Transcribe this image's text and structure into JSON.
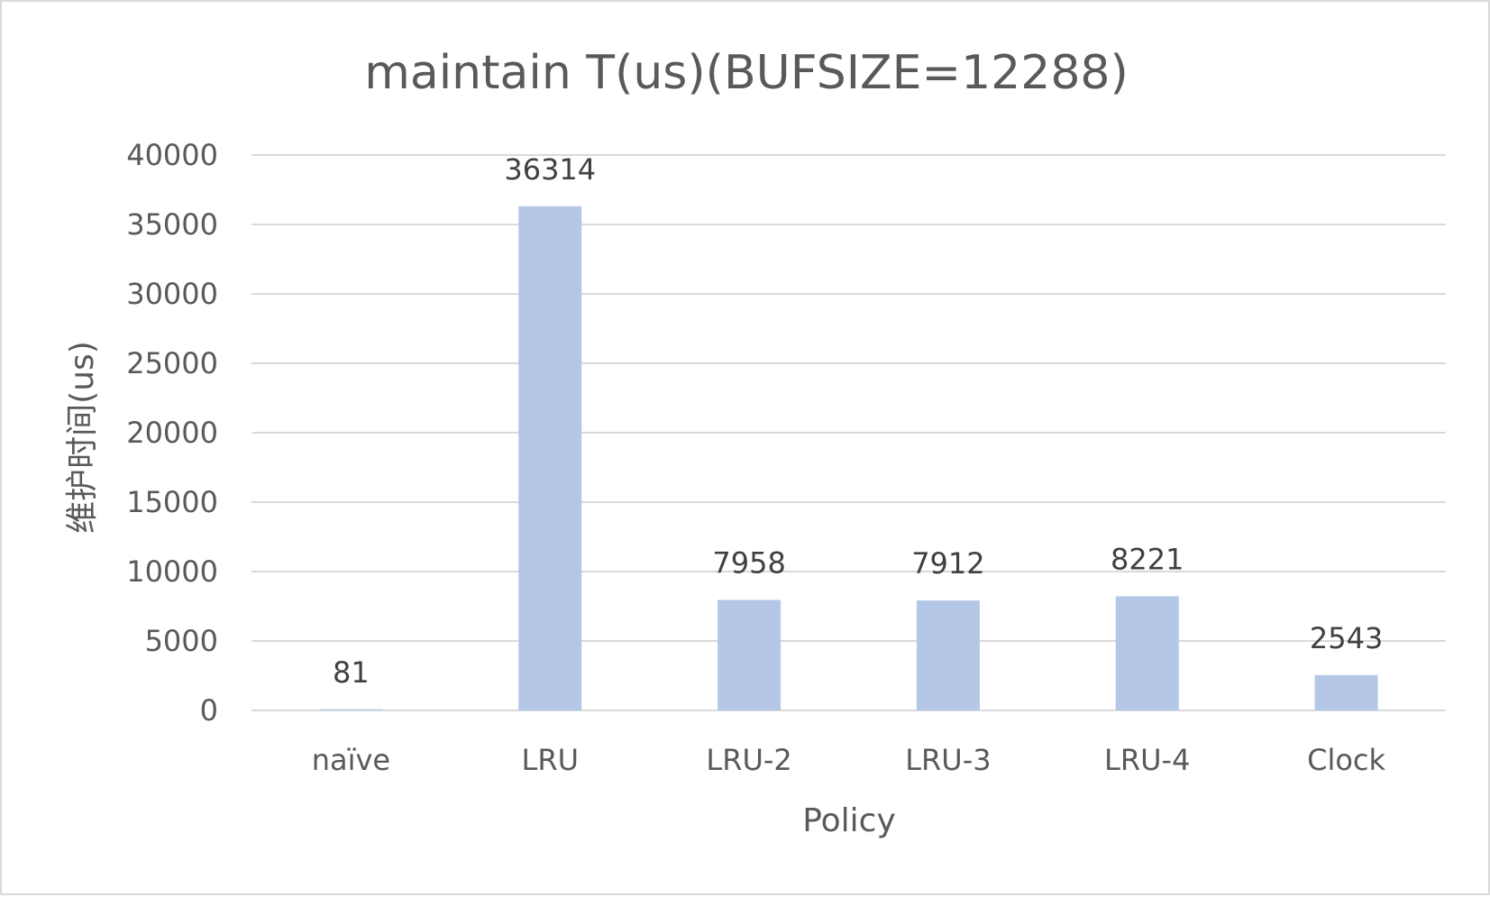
{
  "chart_data": {
    "type": "bar",
    "title": "maintain T(us)(BUFSIZE=12288)",
    "xlabel": "Policy",
    "ylabel": "维护时间(us)",
    "categories": [
      "naïve",
      "LRU",
      "LRU-2",
      "LRU-3",
      "LRU-4",
      "Clock"
    ],
    "values": [
      81,
      36314,
      7958,
      7912,
      8221,
      2543
    ],
    "data_labels": [
      "81",
      "36314",
      "7958",
      "7912",
      "8221",
      "2543"
    ],
    "ylim": [
      0,
      40000
    ],
    "yticks": [
      0,
      5000,
      10000,
      15000,
      20000,
      25000,
      30000,
      35000,
      40000
    ],
    "ytick_labels": [
      "0",
      "5000",
      "10000",
      "15000",
      "20000",
      "25000",
      "30000",
      "35000",
      "40000"
    ],
    "grid": true,
    "legend": "none",
    "bar_color": "#b4c7e7"
  }
}
